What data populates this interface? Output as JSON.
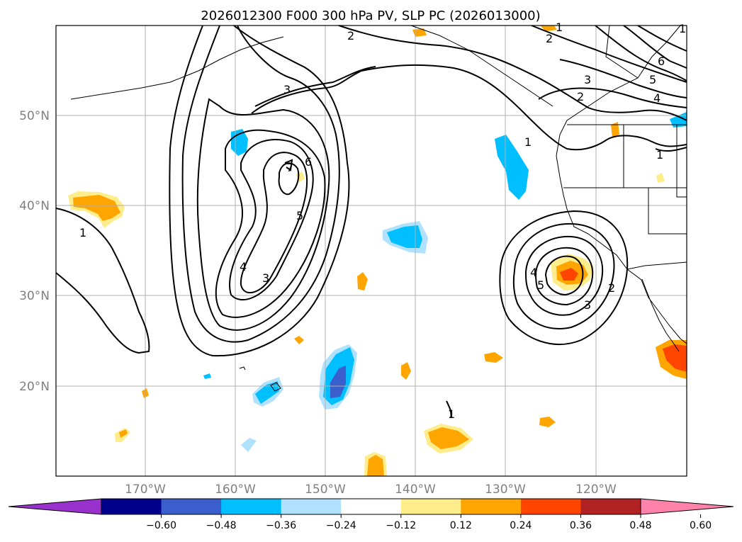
{
  "title": "2026012300 F000 300 hPa PV, SLP PC (2026013000)",
  "axes": {
    "lat_labels": [
      "50°N",
      "40°N",
      "30°N",
      "20°N"
    ],
    "lon_labels": [
      "170°W",
      "160°W",
      "150°W",
      "140°W",
      "130°W",
      "120°W"
    ]
  },
  "colorbar": {
    "ticks": [
      "−0.60",
      "−0.48",
      "−0.36",
      "−0.24",
      "−0.12",
      "0.12",
      "0.24",
      "0.36",
      "0.48",
      "0.60"
    ],
    "colors": [
      "#9932cc",
      "#00008b",
      "#3a5fcd",
      "#00bfff",
      "#b0e2ff",
      "#ffffff",
      "#ffec8b",
      "#ffa500",
      "#ff4500",
      "#b22222",
      "#ff82ab"
    ]
  },
  "contour_labels": [
    "1",
    "2",
    "3",
    "4",
    "5",
    "6",
    "7",
    "1",
    "3",
    "4",
    "5",
    "1",
    "2",
    "3",
    "4",
    "5",
    "6",
    "2",
    "3",
    "2",
    "1",
    "1",
    "1",
    "1",
    "2",
    "3",
    "4",
    "5"
  ]
}
